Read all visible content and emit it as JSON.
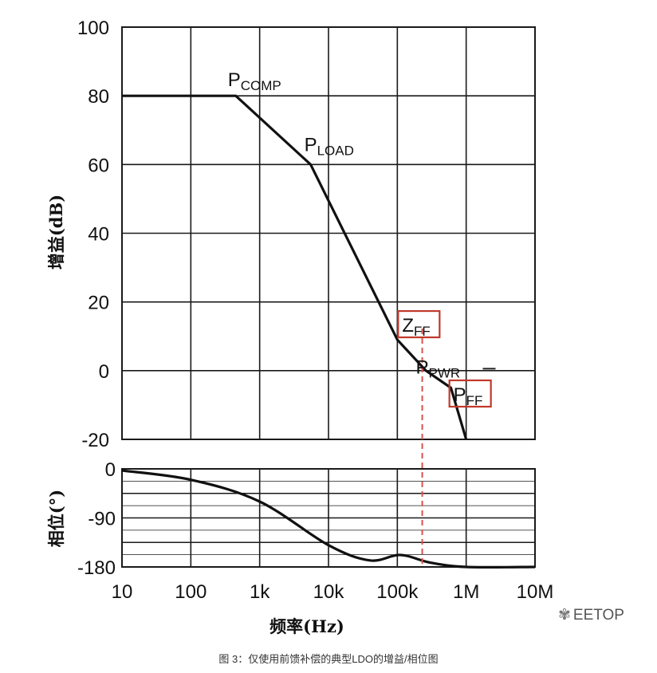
{
  "chart_data": [
    {
      "type": "line",
      "name": "gain",
      "ylabel": "增益(dB)",
      "xscale": "log",
      "xlim": [
        10,
        10000000
      ],
      "ylim": [
        -20,
        100
      ],
      "yticks": [
        100,
        80,
        60,
        40,
        20,
        0,
        -20
      ],
      "grid": true,
      "points": [
        [
          10,
          80
        ],
        [
          450,
          80
        ],
        [
          5500,
          60
        ],
        [
          100000,
          9
        ],
        [
          260000,
          0
        ],
        [
          600000,
          -5
        ],
        [
          1000000,
          -20
        ]
      ],
      "annotations": [
        {
          "label": "P",
          "sub": "COMP",
          "x": 450,
          "y": 80,
          "boxed": false
        },
        {
          "label": "P",
          "sub": "LOAD",
          "x": 5500,
          "y": 60,
          "boxed": false
        },
        {
          "label": "Z",
          "sub": "FF",
          "x": 100000,
          "y": 9,
          "boxed": true
        },
        {
          "label": "P",
          "sub": "PWR",
          "x": 600000,
          "y": -5,
          "boxed": false
        },
        {
          "label": "P",
          "sub": "FF",
          "x": 1000000,
          "y": -20,
          "boxed": true
        }
      ],
      "marker_line": {
        "x": 230000,
        "style": "dashed",
        "color": "#d9534f"
      }
    },
    {
      "type": "line",
      "name": "phase",
      "ylabel": "相位(°)",
      "xlabel": "频率(Hz)",
      "xscale": "log",
      "xlim": [
        10,
        10000000
      ],
      "ylim": [
        -180,
        0
      ],
      "yticks": [
        0,
        -90,
        -180
      ],
      "xticks": [
        "10",
        "100",
        "1k",
        "10k",
        "100k",
        "1M",
        "10M"
      ],
      "grid": true,
      "points": [
        [
          10,
          -3
        ],
        [
          100,
          -20
        ],
        [
          1000,
          -60
        ],
        [
          10000,
          -140
        ],
        [
          40000,
          -168
        ],
        [
          110000,
          -158
        ],
        [
          300000,
          -172
        ],
        [
          1000000,
          -180
        ],
        [
          10000000,
          -180
        ]
      ]
    }
  ],
  "watermark": "EETOP",
  "caption": "图 3：仅使用前馈补偿的典型LDO的增益/相位图",
  "colors": {
    "line": "#111111",
    "grid": "#1a1a1a",
    "accent": "#c0392b",
    "dashed": "#d9534f"
  }
}
